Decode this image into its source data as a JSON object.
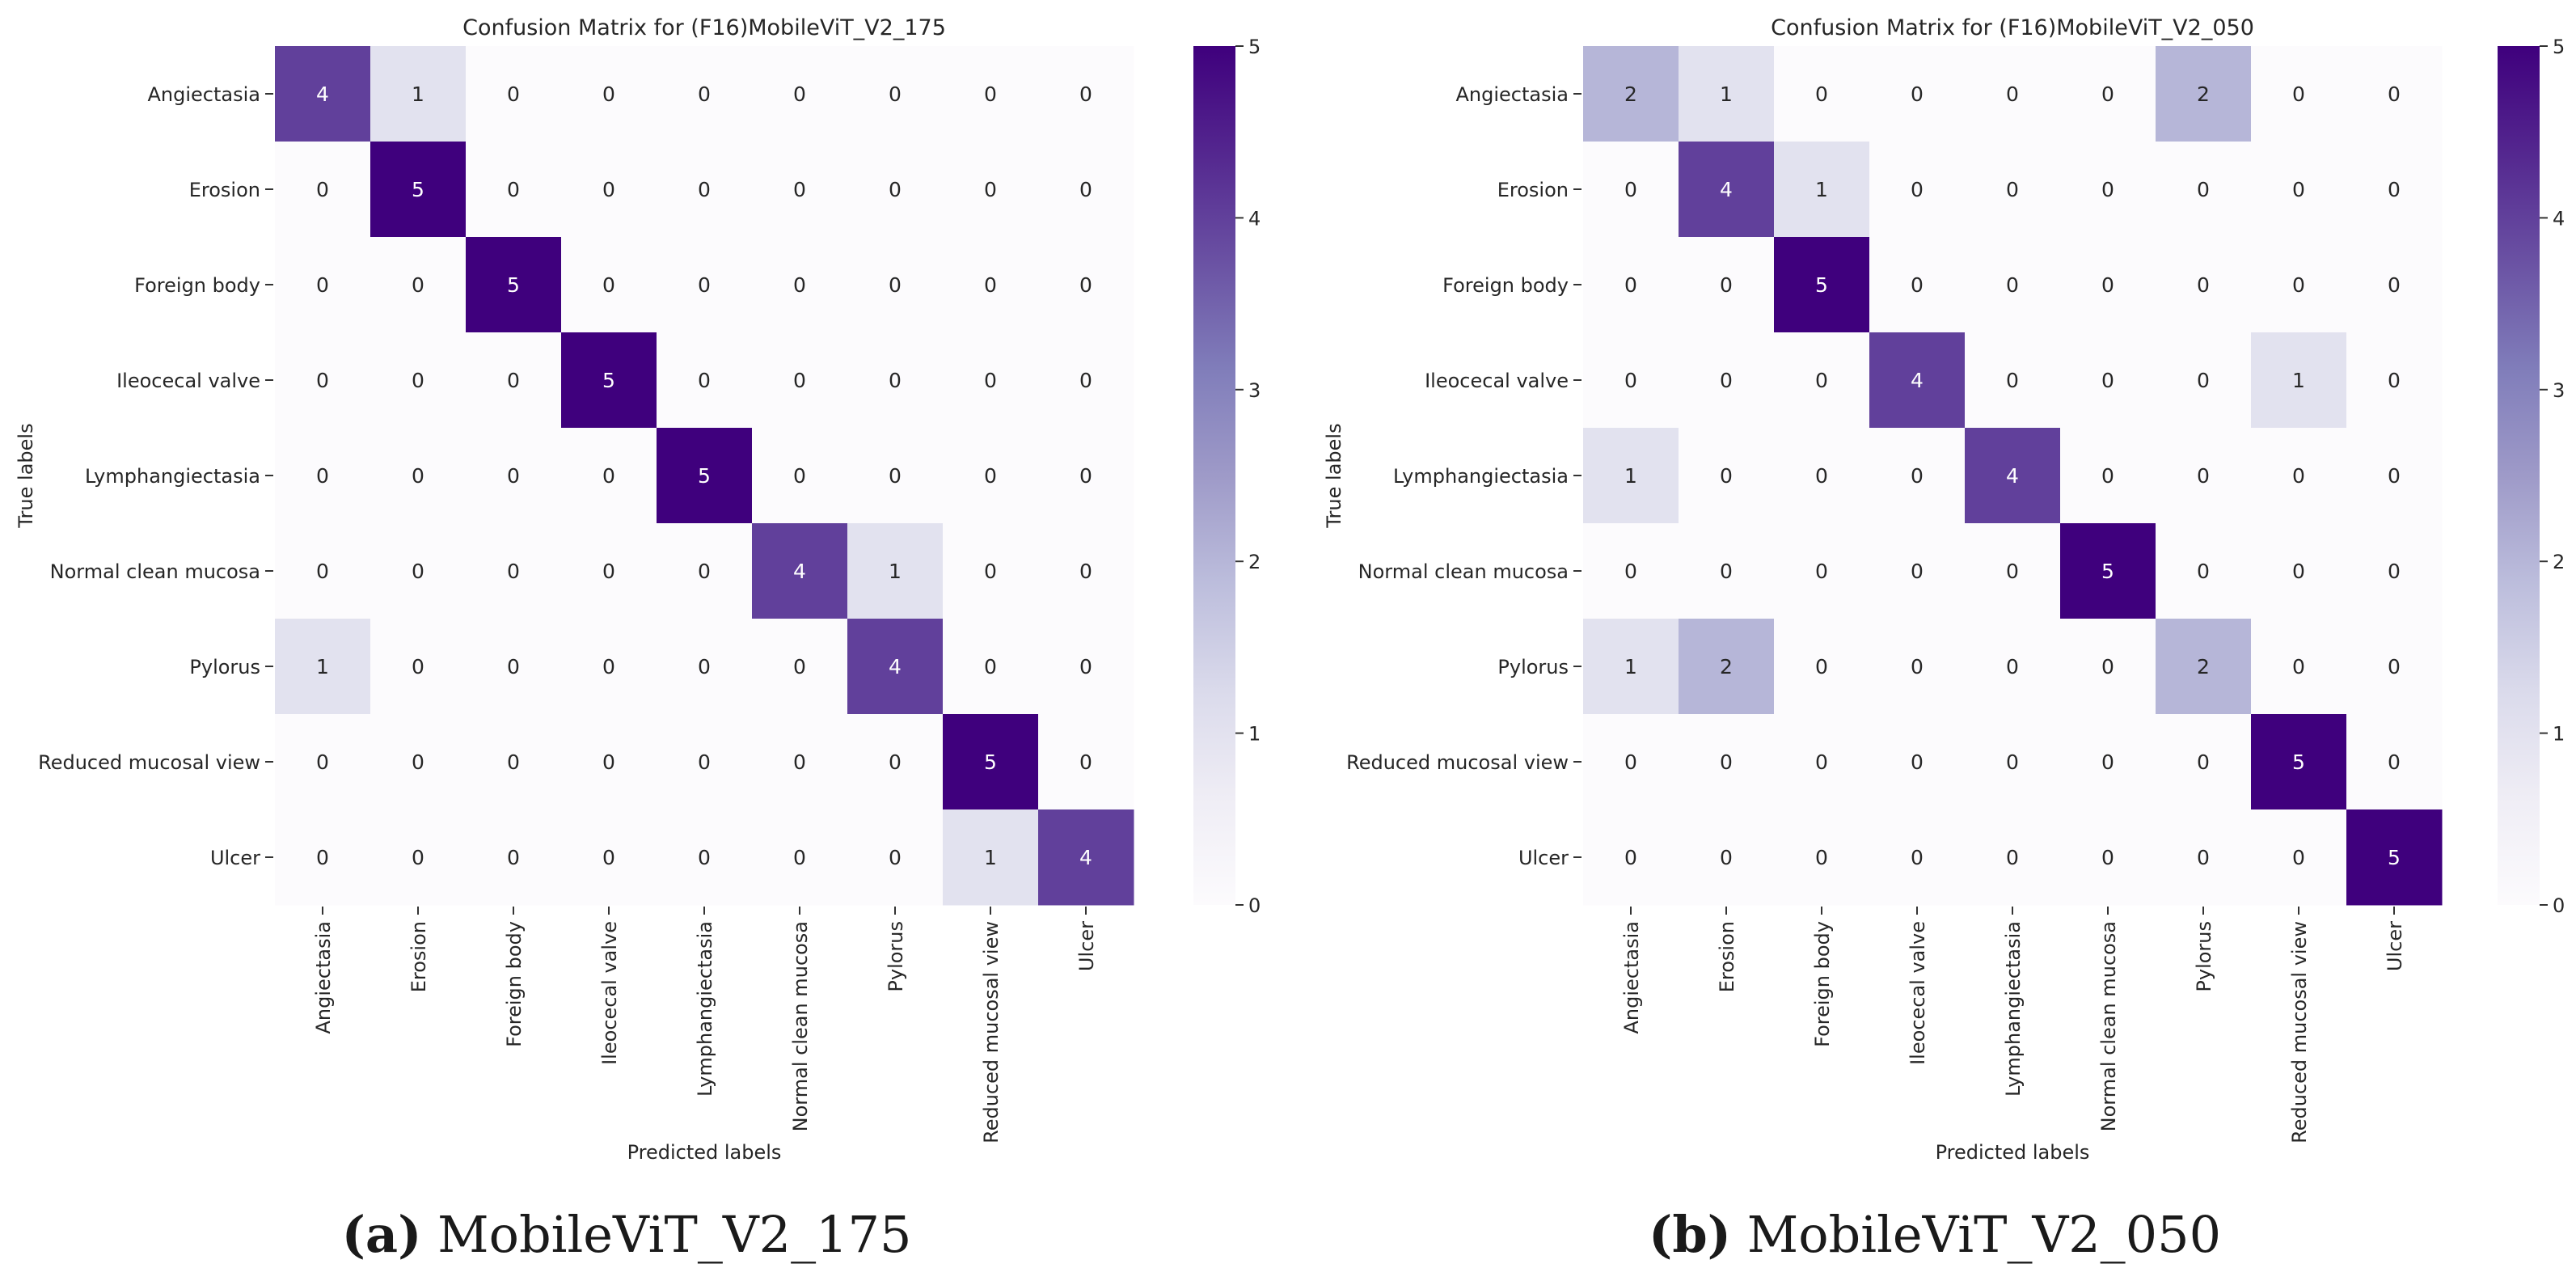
{
  "chart_data": [
    {
      "type": "heatmap",
      "title": "Confusion Matrix for (F16)MobileViT_V2_175",
      "xlabel": "Predicted labels",
      "ylabel": "True labels",
      "x_categories": [
        "Angiectasia",
        "Erosion",
        "Foreign body",
        "Ileocecal valve",
        "Lymphangiectasia",
        "Normal clean mucosa",
        "Pylorus",
        "Reduced mucosal view",
        "Ulcer"
      ],
      "y_categories": [
        "Angiectasia",
        "Erosion",
        "Foreign body",
        "Ileocecal valve",
        "Lymphangiectasia",
        "Normal clean mucosa",
        "Pylorus",
        "Reduced mucosal view",
        "Ulcer"
      ],
      "matrix": [
        [
          4,
          1,
          0,
          0,
          0,
          0,
          0,
          0,
          0
        ],
        [
          0,
          5,
          0,
          0,
          0,
          0,
          0,
          0,
          0
        ],
        [
          0,
          0,
          5,
          0,
          0,
          0,
          0,
          0,
          0
        ],
        [
          0,
          0,
          0,
          5,
          0,
          0,
          0,
          0,
          0
        ],
        [
          0,
          0,
          0,
          0,
          5,
          0,
          0,
          0,
          0
        ],
        [
          0,
          0,
          0,
          0,
          0,
          4,
          1,
          0,
          0
        ],
        [
          1,
          0,
          0,
          0,
          0,
          0,
          4,
          0,
          0
        ],
        [
          0,
          0,
          0,
          0,
          0,
          0,
          0,
          5,
          0
        ],
        [
          0,
          0,
          0,
          0,
          0,
          0,
          0,
          1,
          4
        ]
      ],
      "colorbar": {
        "min": 0,
        "max": 5,
        "ticks": [
          "0",
          "1",
          "2",
          "3",
          "4",
          "5"
        ],
        "colormap": "Purples"
      },
      "caption_letter": "(a)",
      "caption_text": "MobileViT_V2_175"
    },
    {
      "type": "heatmap",
      "title": "Confusion Matrix for (F16)MobileViT_V2_050",
      "xlabel": "Predicted labels",
      "ylabel": "True labels",
      "x_categories": [
        "Angiectasia",
        "Erosion",
        "Foreign body",
        "Ileocecal valve",
        "Lymphangiectasia",
        "Normal clean mucosa",
        "Pylorus",
        "Reduced mucosal view",
        "Ulcer"
      ],
      "y_categories": [
        "Angiectasia",
        "Erosion",
        "Foreign body",
        "Ileocecal valve",
        "Lymphangiectasia",
        "Normal clean mucosa",
        "Pylorus",
        "Reduced mucosal view",
        "Ulcer"
      ],
      "matrix": [
        [
          2,
          1,
          0,
          0,
          0,
          0,
          2,
          0,
          0
        ],
        [
          0,
          4,
          1,
          0,
          0,
          0,
          0,
          0,
          0
        ],
        [
          0,
          0,
          5,
          0,
          0,
          0,
          0,
          0,
          0
        ],
        [
          0,
          0,
          0,
          4,
          0,
          0,
          0,
          1,
          0
        ],
        [
          1,
          0,
          0,
          0,
          4,
          0,
          0,
          0,
          0
        ],
        [
          0,
          0,
          0,
          0,
          0,
          5,
          0,
          0,
          0
        ],
        [
          1,
          2,
          0,
          0,
          0,
          0,
          2,
          0,
          0
        ],
        [
          0,
          0,
          0,
          0,
          0,
          0,
          0,
          5,
          0
        ],
        [
          0,
          0,
          0,
          0,
          0,
          0,
          0,
          0,
          5
        ]
      ],
      "colorbar": {
        "min": 0,
        "max": 5,
        "ticks": [
          "0",
          "1",
          "2",
          "3",
          "4",
          "5"
        ],
        "colormap": "Purples"
      },
      "caption_letter": "(b)",
      "caption_text": "MobileViT_V2_050"
    }
  ],
  "colors": {
    "low": "#fcfbfd",
    "high": "#3f007d",
    "text_dark": "#262626",
    "text_light": "#ffffff",
    "purples_stops": [
      "#fcfbfd",
      "#efedf5",
      "#dadaeb",
      "#bcbddc",
      "#9e9ac8",
      "#807dba",
      "#6a51a3",
      "#54278f",
      "#3f007d"
    ]
  }
}
